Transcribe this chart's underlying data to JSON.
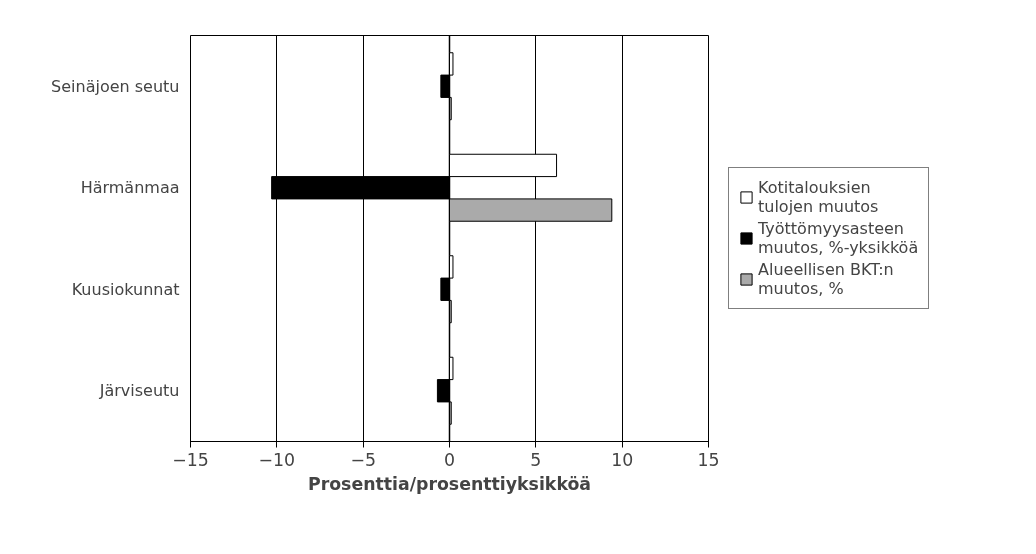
{
  "chart_data": {
    "type": "bar",
    "orientation": "horizontal",
    "xlabel": "Prosenttia/prosenttiyksikköä",
    "categories": [
      "Seinäjoen seutu",
      "Härmänmaa",
      "Kuusiokunnat",
      "Järviseutu"
    ],
    "series": [
      {
        "name": "Kotitalouksien tulojen muutos",
        "color": "#ffffff",
        "values": [
          0.2,
          6.2,
          0.2,
          0.2
        ]
      },
      {
        "name": "Työttömyysasteen muutos, %-yksikköä",
        "color": "#000000",
        "values": [
          -0.5,
          -10.3,
          -0.5,
          -0.7
        ]
      },
      {
        "name": "Alueellisen BKT:n muutos, %",
        "color": "#aaaaaa",
        "values": [
          0.1,
          9.4,
          0.1,
          0.1
        ]
      }
    ],
    "xlim": [
      -15,
      15
    ],
    "xticks": [
      -15,
      -10,
      -5,
      0,
      5,
      10,
      15
    ],
    "grid": "x",
    "legend": "right"
  }
}
